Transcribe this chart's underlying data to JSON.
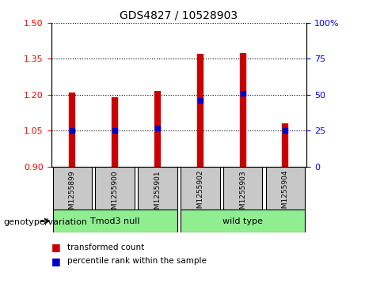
{
  "title": "GDS4827 / 10528903",
  "samples": [
    "GSM1255899",
    "GSM1255900",
    "GSM1255901",
    "GSM1255902",
    "GSM1255903",
    "GSM1255904"
  ],
  "transformed_counts": [
    1.21,
    1.19,
    1.215,
    1.37,
    1.375,
    1.08
  ],
  "percentile_ranks": [
    25,
    25,
    27,
    46,
    51,
    25
  ],
  "ylim_left": [
    0.9,
    1.5
  ],
  "ylim_right": [
    0,
    100
  ],
  "left_ticks": [
    0.9,
    1.05,
    1.2,
    1.35,
    1.5
  ],
  "right_ticks": [
    0,
    25,
    50,
    75,
    100
  ],
  "groups": [
    {
      "label": "Tmod3 null",
      "indices": [
        0,
        1,
        2
      ],
      "color": "#90EE90"
    },
    {
      "label": "wild type",
      "indices": [
        3,
        4,
        5
      ],
      "color": "#90EE90"
    }
  ],
  "group_label_prefix": "genotype/variation",
  "bar_color": "#CC0000",
  "dot_color": "#0000CC",
  "background_label": "#C8C8C8",
  "legend_items": [
    "transformed count",
    "percentile rank within the sample"
  ]
}
